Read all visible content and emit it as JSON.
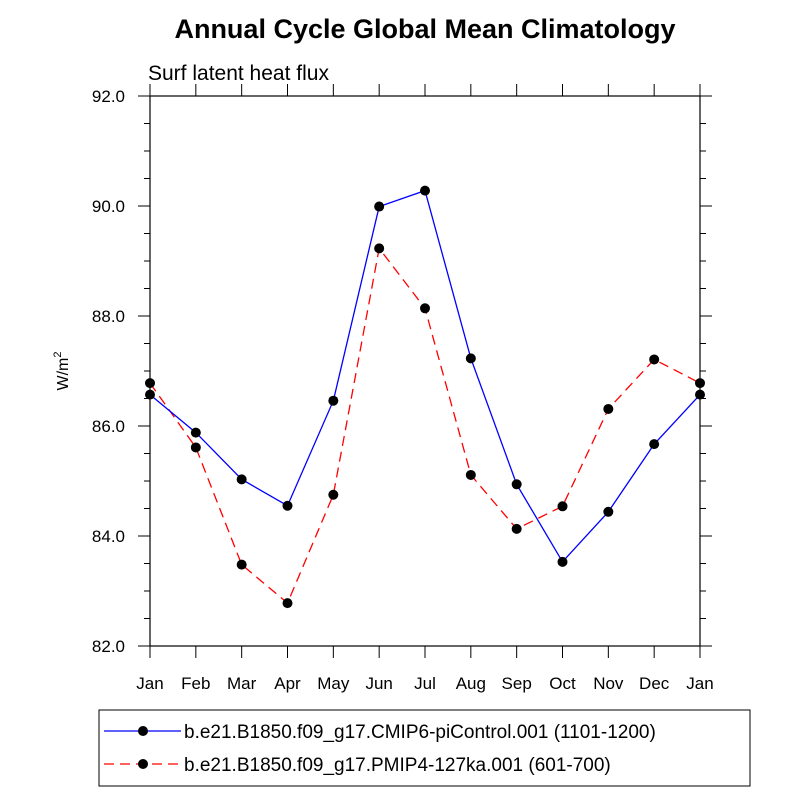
{
  "chart_data": {
    "type": "line",
    "title": "Annual Cycle Global Mean Climatology",
    "subtitle": "Surf latent heat flux",
    "xlabel": "",
    "ylabel": "W/m",
    "ylabel_sup": "2",
    "categories": [
      "Jan",
      "Feb",
      "Mar",
      "Apr",
      "May",
      "Jun",
      "Jul",
      "Aug",
      "Sep",
      "Oct",
      "Nov",
      "Dec",
      "Jan"
    ],
    "ylim": [
      82.0,
      92.0
    ],
    "yticks": [
      82.0,
      84.0,
      86.0,
      88.0,
      90.0,
      92.0
    ],
    "ytick_labels": [
      "82.0",
      "84.0",
      "86.0",
      "88.0",
      "90.0",
      "92.0"
    ],
    "grid": false,
    "legend_position": "bottom",
    "series": [
      {
        "name": "b.e21.B1850.f09_g17.CMIP6-piControl.001 (1101-1200)",
        "values": [
          86.57,
          85.88,
          85.03,
          84.55,
          86.46,
          89.99,
          90.28,
          87.23,
          84.94,
          83.53,
          84.44,
          85.67,
          86.57
        ],
        "color": "#0000ff",
        "dash": "solid"
      },
      {
        "name": "b.e21.B1850.f09_g17.PMIP4-127ka.001 (601-700)",
        "values": [
          86.78,
          85.61,
          83.48,
          82.78,
          84.75,
          89.23,
          88.14,
          85.11,
          84.13,
          84.54,
          86.31,
          87.21,
          86.78
        ],
        "color": "#ff0000",
        "dash": "dashed"
      }
    ]
  }
}
